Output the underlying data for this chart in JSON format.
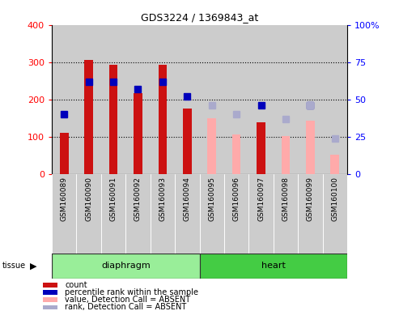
{
  "title": "GDS3224 / 1369843_at",
  "samples": [
    "GSM160089",
    "GSM160090",
    "GSM160091",
    "GSM160092",
    "GSM160093",
    "GSM160094",
    "GSM160095",
    "GSM160096",
    "GSM160097",
    "GSM160098",
    "GSM160099",
    "GSM160100"
  ],
  "count_values": [
    110,
    305,
    292,
    218,
    292,
    175,
    null,
    null,
    140,
    null,
    143,
    null
  ],
  "count_absent": [
    null,
    null,
    null,
    null,
    null,
    null,
    150,
    107,
    null,
    103,
    143,
    53
  ],
  "rank_present": [
    40,
    62,
    62,
    57,
    62,
    52,
    null,
    null,
    46,
    null,
    46,
    null
  ],
  "rank_absent": [
    null,
    null,
    null,
    null,
    null,
    null,
    46,
    40,
    null,
    37,
    46,
    24
  ],
  "tissue_groups": [
    {
      "label": "diaphragm",
      "start": 0,
      "end": 5
    },
    {
      "label": "heart",
      "start": 6,
      "end": 11
    }
  ],
  "ylim_left": [
    0,
    400
  ],
  "ylim_right": [
    0,
    100
  ],
  "yticks_left": [
    0,
    100,
    200,
    300,
    400
  ],
  "yticks_right": [
    0,
    25,
    50,
    75,
    100
  ],
  "yticklabels_right": [
    "0",
    "25",
    "50",
    "75",
    "100%"
  ],
  "color_count_present": "#cc1111",
  "color_count_absent": "#ffaaaa",
  "color_rank_present": "#0000bb",
  "color_rank_absent": "#aaaacc",
  "color_tissue_diaphragm": "#99ee99",
  "color_tissue_heart": "#44cc44",
  "bar_width": 0.35,
  "marker_size": 6,
  "grid_color": "#000000",
  "background_color": "#cccccc",
  "plot_bg": "#ffffff",
  "legend_items": [
    {
      "label": "count",
      "color": "#cc1111"
    },
    {
      "label": "percentile rank within the sample",
      "color": "#0000bb"
    },
    {
      "label": "value, Detection Call = ABSENT",
      "color": "#ffaaaa"
    },
    {
      "label": "rank, Detection Call = ABSENT",
      "color": "#aaaacc"
    }
  ]
}
